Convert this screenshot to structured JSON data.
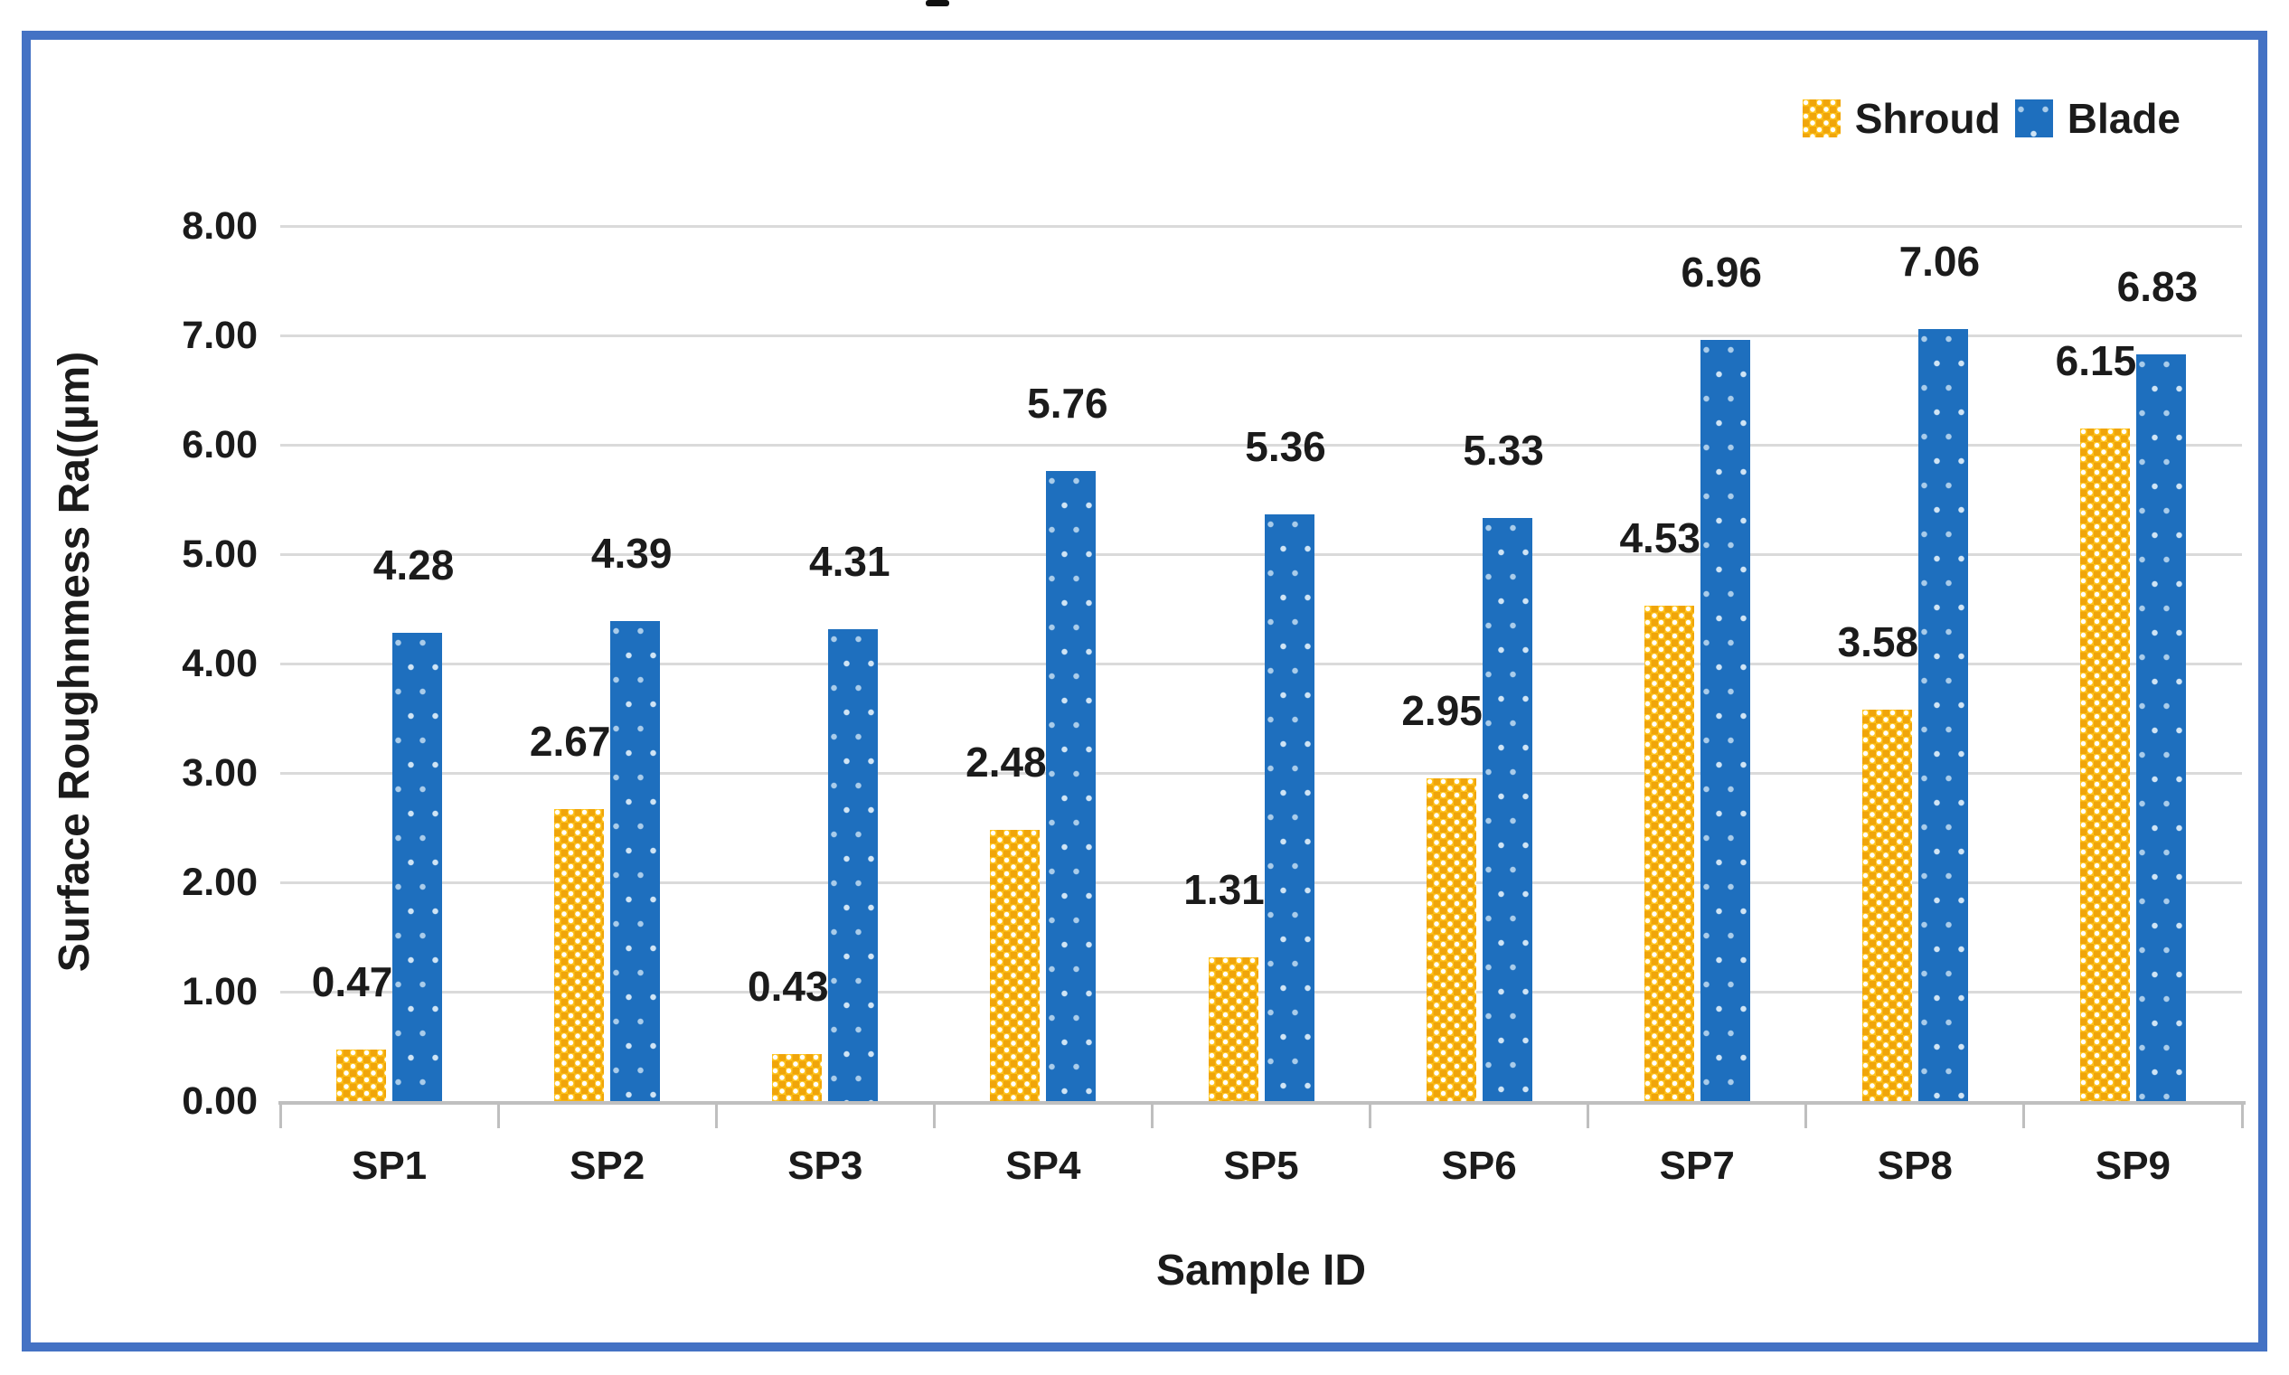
{
  "frame": {
    "border_color": "#4472C4"
  },
  "legend": {
    "position": "top-right",
    "items": [
      {
        "label": "Shroud",
        "swatch": "yellow-checker-pattern"
      },
      {
        "label": "Blade",
        "swatch": "blue-dots-pattern"
      }
    ]
  },
  "chart_data": {
    "type": "bar",
    "title": "",
    "categories": [
      "SP1",
      "SP2",
      "SP3",
      "SP4",
      "SP5",
      "SP6",
      "SP7",
      "SP8",
      "SP9"
    ],
    "series": [
      {
        "name": "Shroud",
        "color": "#FEC31C",
        "pattern": "checker-with-white-dots",
        "values": [
          0.47,
          2.67,
          0.43,
          2.48,
          1.31,
          2.95,
          4.53,
          3.58,
          6.15
        ],
        "labels": [
          "0.47",
          "2.67",
          "0.43",
          "2.48",
          "1.31",
          "2.95",
          "4.53",
          "3.58",
          "6.15"
        ]
      },
      {
        "name": "Blade",
        "color": "#1E6FBE",
        "pattern": "solid-with-light-dots",
        "values": [
          4.28,
          4.39,
          4.31,
          5.76,
          5.36,
          5.33,
          6.96,
          7.06,
          6.83
        ],
        "labels": [
          "4.28",
          "4.39",
          "4.31",
          "5.76",
          "5.36",
          "5.33",
          "6.96",
          "7.06",
          "6.83"
        ]
      }
    ],
    "xlabel": "Sample ID",
    "ylabel": "Surface Roughnmess Ra((µm)",
    "ylim": [
      0,
      8
    ],
    "ytick_labels": [
      "0.00",
      "1.00",
      "2.00",
      "3.00",
      "4.00",
      "5.00",
      "6.00",
      "7.00",
      "8.00"
    ],
    "grid": "horizontal",
    "gridline_color": "#DADADA",
    "axis_line_color": "#BFBFBF",
    "data_labels": "outside-end",
    "legend_position": "top-right"
  }
}
